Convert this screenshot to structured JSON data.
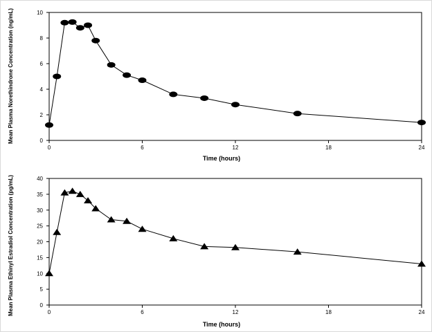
{
  "chart_data": [
    {
      "type": "line",
      "marker": "circle",
      "xlabel": "Time (hours)",
      "ylabel": "Mean Plasma Norethindrone Concentration (ng/mL)",
      "xlim": [
        0,
        24
      ],
      "ylim": [
        0,
        10
      ],
      "xticks": [
        0,
        6,
        12,
        18,
        24
      ],
      "yticks": [
        0,
        2,
        4,
        6,
        8,
        10
      ],
      "grid": false,
      "series": [
        {
          "x": [
            0,
            0.5,
            1,
            1.5,
            2,
            2.5,
            3,
            4,
            5,
            6,
            8,
            10,
            12,
            16,
            24
          ],
          "y": [
            1.2,
            5.0,
            9.2,
            9.25,
            8.8,
            9.0,
            7.8,
            5.9,
            5.1,
            4.7,
            3.6,
            3.3,
            2.8,
            2.1,
            1.4
          ]
        }
      ]
    },
    {
      "type": "line",
      "marker": "triangle",
      "xlabel": "Time (hours)",
      "ylabel": "Mean Plasma Ethinyl Estradiol Concentration (pg/mL)",
      "xlim": [
        0,
        24
      ],
      "ylim": [
        0,
        40
      ],
      "xticks": [
        0,
        6,
        12,
        18,
        24
      ],
      "yticks": [
        0,
        5,
        10,
        15,
        20,
        25,
        30,
        35,
        40
      ],
      "grid": false,
      "series": [
        {
          "x": [
            0,
            0.5,
            1,
            1.5,
            2,
            2.5,
            3,
            4,
            5,
            6,
            8,
            10,
            12,
            16,
            24
          ],
          "y": [
            10.0,
            23.0,
            35.5,
            36.0,
            35.0,
            33.0,
            30.5,
            27.0,
            26.5,
            24.0,
            21.0,
            18.5,
            18.2,
            16.8,
            13.0
          ]
        }
      ]
    }
  ]
}
